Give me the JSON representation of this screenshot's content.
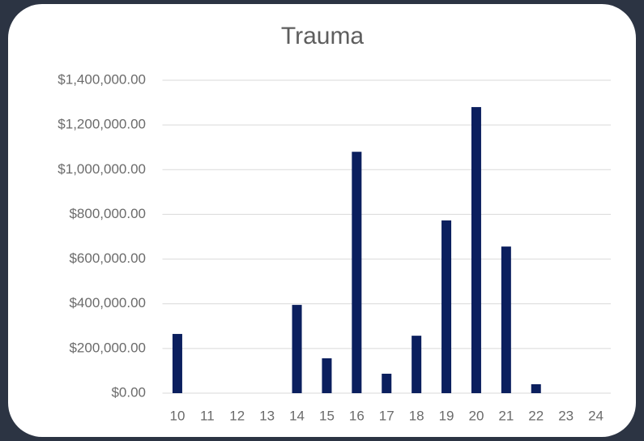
{
  "chart_data": {
    "type": "bar",
    "title": "Trauma",
    "categories": [
      "10",
      "11",
      "12",
      "13",
      "14",
      "15",
      "16",
      "17",
      "18",
      "19",
      "20",
      "21",
      "22",
      "23",
      "24"
    ],
    "values": [
      265000,
      0,
      0,
      0,
      395000,
      156000,
      1080000,
      87000,
      257000,
      773000,
      1280000,
      656000,
      40000,
      0,
      0
    ],
    "color": "#0b1f5e",
    "ylim": [
      0,
      1400000
    ],
    "yticks": [
      {
        "value": 0,
        "label": "$0.00"
      },
      {
        "value": 200000,
        "label": "$200,000.00"
      },
      {
        "value": 400000,
        "label": "$400,000.00"
      },
      {
        "value": 600000,
        "label": "$600,000.00"
      },
      {
        "value": 800000,
        "label": "$800,000.00"
      },
      {
        "value": 1000000,
        "label": "$1,000,000.00"
      },
      {
        "value": 1200000,
        "label": "$1,200,000.00"
      },
      {
        "value": 1400000,
        "label": "$1,400,000.00"
      }
    ],
    "grid": true
  }
}
